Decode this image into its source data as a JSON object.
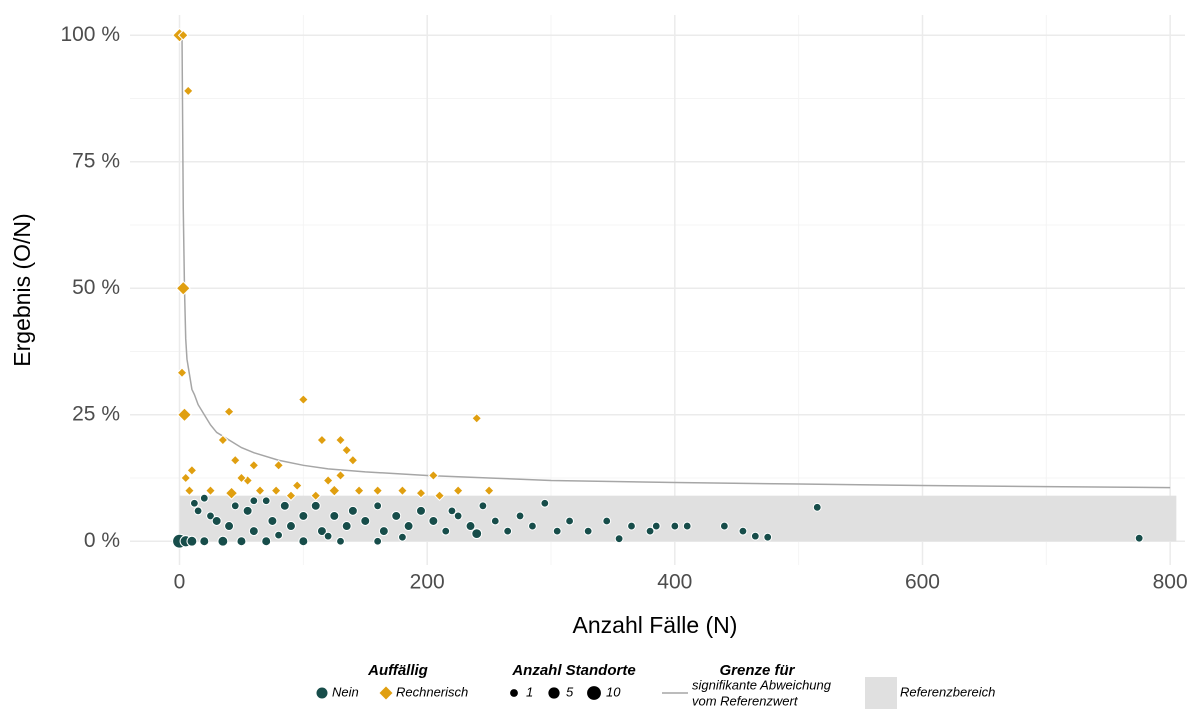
{
  "chart_data": {
    "type": "scatter",
    "xlabel": "Anzahl Fälle (N)",
    "ylabel": "Ergebnis (O/N)",
    "xlim": [
      -40,
      812
    ],
    "ylim": [
      -4.7,
      104
    ],
    "xticks": [
      0,
      200,
      400,
      600,
      800
    ],
    "xminor": [
      100,
      300,
      500,
      700
    ],
    "yticks": [
      {
        "value": 0,
        "label": "0 %"
      },
      {
        "value": 25,
        "label": "25 %"
      },
      {
        "value": 50,
        "label": "50 %"
      },
      {
        "value": 75,
        "label": "75 %"
      },
      {
        "value": 100,
        "label": "100 %"
      }
    ],
    "yminor": [
      12.5,
      37.5,
      62.5,
      87.5
    ],
    "grid": true,
    "reference_band": {
      "name": "Referenzbereich",
      "color": "#e0e0e0",
      "xlim": [
        0,
        805
      ],
      "ylim": [
        0,
        9
      ]
    },
    "limit_line": {
      "title": "Grenze für",
      "label": [
        "signifikante Abweichung",
        "vom Referenzwert"
      ],
      "color": "#a6a6a6",
      "x": [
        1,
        2,
        3,
        4,
        5,
        6,
        8,
        10,
        12,
        15,
        20,
        25,
        30,
        40,
        50,
        60,
        80,
        100,
        120,
        150,
        200,
        250,
        300,
        400,
        500,
        600,
        700,
        800
      ],
      "values": [
        100,
        100,
        66,
        50,
        40,
        36,
        33,
        30,
        29,
        27,
        25,
        23,
        21.5,
        20,
        18.5,
        17.5,
        16,
        15,
        14.3,
        13.7,
        13,
        12.5,
        12,
        11.6,
        11.3,
        11,
        10.8,
        10.6
      ]
    },
    "color_legend_title": "Auffällig",
    "series": [
      {
        "name": "Nein",
        "color": "#174d4a",
        "marker": "circle",
        "x": [
          0,
          5,
          10,
          20,
          35,
          50,
          70,
          100,
          130,
          160,
          12,
          15,
          20,
          25,
          30,
          40,
          45,
          55,
          60,
          70,
          75,
          85,
          90,
          100,
          110,
          115,
          125,
          135,
          140,
          150,
          160,
          165,
          175,
          185,
          195,
          205,
          215,
          225,
          235,
          240,
          245,
          255,
          265,
          275,
          285,
          295,
          305,
          315,
          330,
          345,
          365,
          380,
          385,
          400,
          410,
          440,
          455,
          465,
          475,
          515,
          775,
          355,
          180,
          120,
          80,
          220,
          60
        ],
        "values": [
          0,
          0,
          0,
          0,
          0,
          0,
          0,
          0,
          0,
          0,
          7.5,
          6,
          8.5,
          5,
          4,
          3,
          7,
          6,
          2,
          8,
          4,
          7,
          3,
          5,
          7,
          2,
          5,
          3,
          6,
          4,
          7,
          2,
          5,
          3,
          6,
          4,
          2,
          5,
          3,
          1.5,
          7,
          4,
          2,
          5,
          3,
          7.5,
          2,
          4,
          2,
          4,
          3,
          2,
          3,
          3,
          3,
          3,
          2,
          1,
          0.8,
          6.7,
          0.6,
          0.5,
          0.8,
          1,
          1.2,
          6,
          8
        ],
        "sizes": [
          10,
          5,
          3,
          2,
          3,
          2,
          2,
          2,
          1,
          1,
          1,
          1,
          1,
          1,
          2,
          2,
          1,
          2,
          2,
          1,
          2,
          2,
          2,
          2,
          2,
          2,
          2,
          2,
          2,
          2,
          1,
          2,
          2,
          2,
          2,
          2,
          1,
          1,
          2,
          3,
          1,
          1,
          1,
          1,
          1,
          1,
          1,
          1,
          1,
          1,
          1,
          1,
          1,
          1,
          1,
          1,
          1,
          1,
          1,
          1,
          1,
          1,
          1,
          1,
          1,
          1,
          1
        ]
      },
      {
        "name": "Rechnerisch",
        "color": "#e09f10",
        "marker": "diamond",
        "x": [
          0,
          3,
          7,
          3,
          2,
          4,
          40,
          100,
          115,
          130,
          135,
          140,
          35,
          240,
          5,
          10,
          8,
          45,
          60,
          80,
          42,
          55,
          65,
          78,
          90,
          95,
          120,
          130,
          145,
          160,
          180,
          195,
          205,
          210,
          225,
          250,
          125,
          110,
          50,
          25
        ],
        "values": [
          100,
          100,
          89,
          50,
          33.3,
          25,
          25.6,
          28,
          20,
          20,
          18,
          16,
          20,
          24.3,
          12.5,
          14,
          10,
          16,
          15,
          15,
          9.5,
          12,
          10,
          10,
          9,
          11,
          12,
          13,
          10,
          10,
          10,
          9.5,
          13,
          9,
          10,
          10,
          10,
          9,
          12.5,
          10
        ],
        "sizes": [
          5,
          1,
          1,
          5,
          1,
          5,
          1,
          1,
          1,
          1,
          1,
          1,
          1,
          1,
          1,
          1,
          1,
          1,
          1,
          1,
          3,
          1,
          1,
          1,
          1,
          1,
          1,
          1,
          1,
          1,
          1,
          1,
          1,
          1,
          1,
          1,
          2,
          1,
          1,
          1
        ]
      }
    ],
    "size_legend": {
      "title": "Anzahl Standorte",
      "values": [
        1,
        5,
        10
      ]
    }
  }
}
